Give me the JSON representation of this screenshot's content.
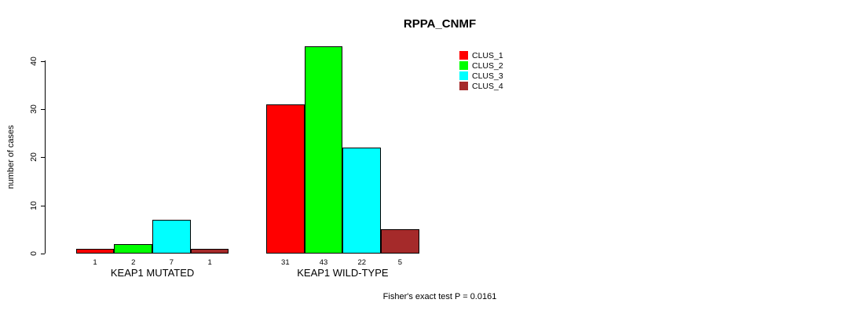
{
  "title": "RPPA_CNMF",
  "y_axis": {
    "label": "number of cases",
    "ticks": [
      0,
      10,
      20,
      30,
      40
    ]
  },
  "footer": "Fisher's exact test P = 0.0161",
  "chart_data": {
    "type": "bar",
    "title": "RPPA_CNMF",
    "xlabel": "",
    "ylabel": "number of cases",
    "categories": [
      "KEAP1 MUTATED",
      "KEAP1 WILD-TYPE"
    ],
    "series": [
      {
        "name": "CLUS_1",
        "color": "#ff0000",
        "values": [
          1,
          31
        ]
      },
      {
        "name": "CLUS_2",
        "color": "#00ff00",
        "values": [
          2,
          43
        ]
      },
      {
        "name": "CLUS_3",
        "color": "#00ffff",
        "values": [
          7,
          22
        ]
      },
      {
        "name": "CLUS_4",
        "color": "#a52a2a",
        "values": [
          1,
          5
        ]
      }
    ],
    "bar_value_labels": [
      [
        "1",
        "2",
        "7",
        "1"
      ],
      [
        "31",
        "43",
        "22",
        "5"
      ]
    ],
    "yticks": [
      0,
      10,
      20,
      30,
      40
    ],
    "ylim": [
      0,
      43
    ],
    "grid": false,
    "legend_position": "top-right",
    "legend_entries": [
      "CLUS_1",
      "CLUS_2",
      "CLUS_3",
      "CLUS_4"
    ],
    "annotation": "Fisher's exact test P = 0.0161"
  }
}
